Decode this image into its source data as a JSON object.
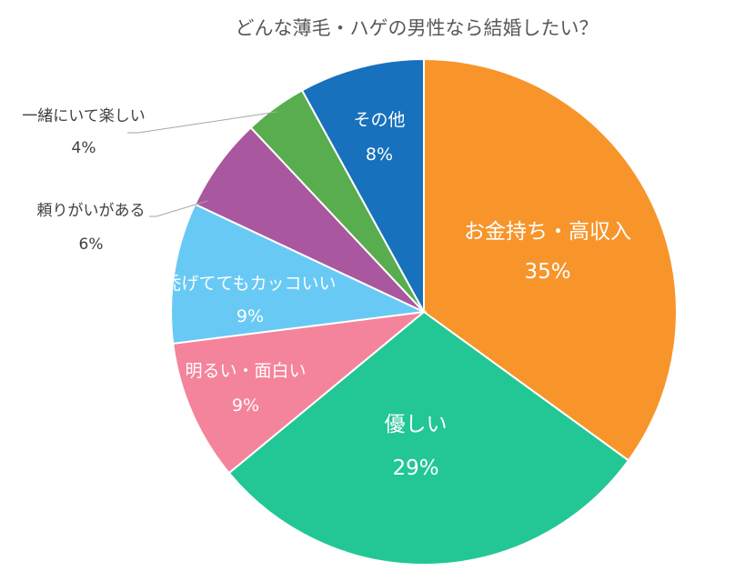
{
  "chart_data": {
    "type": "pie",
    "title": "どんな薄毛・ハゲの男性なら結婚したい？",
    "slices": [
      {
        "label": "お金持ち・高収入",
        "value": 35,
        "percent_label": "35%",
        "color": "#F7952B"
      },
      {
        "label": "優しい",
        "value": 29,
        "percent_label": "29%",
        "color": "#22C795"
      },
      {
        "label": "明るい・面白い",
        "value": 9,
        "percent_label": "9%",
        "color": "#F4849B"
      },
      {
        "label": "禿げててもカッコいい",
        "value": 9,
        "percent_label": "9%",
        "color": "#69C9F5"
      },
      {
        "label": "頼りがいがある",
        "value": 6,
        "percent_label": "6%",
        "color": "#A9579E"
      },
      {
        "label": "一緒にいて楽しい",
        "value": 4,
        "percent_label": "4%",
        "color": "#58AD4E"
      },
      {
        "label": "その他",
        "value": 8,
        "percent_label": "8%",
        "color": "#1771BD"
      }
    ]
  }
}
